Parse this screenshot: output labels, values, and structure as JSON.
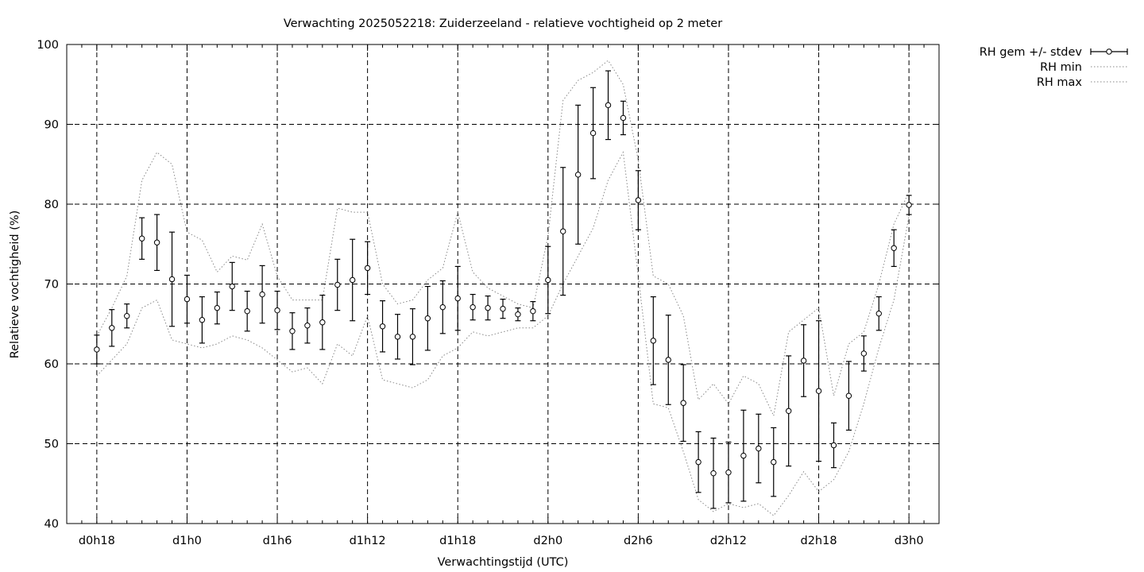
{
  "chart_data": {
    "type": "line",
    "title": "Verwachting 2025052218: Zuiderzeeland - relatieve vochtigheid op 2 meter",
    "xlabel": "Verwachtingstijd (UTC)",
    "ylabel": "Relatieve vochtigheid (%)",
    "ylim": [
      40,
      100
    ],
    "yticks": [
      40,
      50,
      60,
      70,
      80,
      90,
      100
    ],
    "x_unit": "hours since d0h0",
    "xlim": [
      16,
      74
    ],
    "xticks": [
      {
        "x": 18,
        "label": "d0h18"
      },
      {
        "x": 24,
        "label": "d1h0"
      },
      {
        "x": 30,
        "label": "d1h6"
      },
      {
        "x": 36,
        "label": "d1h12"
      },
      {
        "x": 42,
        "label": "d1h18"
      },
      {
        "x": 48,
        "label": "d2h0"
      },
      {
        "x": 54,
        "label": "d2h6"
      },
      {
        "x": 60,
        "label": "d2h12"
      },
      {
        "x": 66,
        "label": "d2h18"
      },
      {
        "x": 72,
        "label": "d3h0"
      }
    ],
    "grid": true,
    "legend_position": "outside-top-right",
    "x": [
      18,
      19,
      20,
      21,
      22,
      23,
      24,
      25,
      26,
      27,
      28,
      29,
      30,
      31,
      32,
      33,
      34,
      35,
      36,
      37,
      38,
      39,
      40,
      41,
      42,
      43,
      44,
      45,
      46,
      47,
      48,
      49,
      50,
      51,
      52,
      53,
      54,
      55,
      56,
      57,
      58,
      59,
      60,
      61,
      62,
      63,
      64,
      65,
      66,
      67,
      68,
      69,
      70,
      71,
      72
    ],
    "series": [
      {
        "name": "RH gem +/- stdev",
        "style": "errorbars",
        "mean": [
          61.8,
          64.5,
          66.0,
          75.7,
          75.2,
          70.6,
          68.1,
          65.5,
          67.0,
          69.7,
          66.6,
          68.7,
          66.7,
          64.1,
          64.8,
          65.2,
          69.9,
          70.5,
          72.0,
          64.7,
          63.4,
          63.4,
          65.7,
          67.1,
          68.2,
          67.1,
          67.0,
          66.9,
          66.2,
          66.6,
          70.5,
          76.6,
          83.7,
          88.9,
          92.4,
          90.8,
          80.5,
          62.9,
          60.5,
          55.1,
          47.7,
          46.3,
          46.4,
          48.5,
          49.4,
          47.7,
          54.1,
          60.4,
          56.6,
          49.8,
          56.0,
          61.3,
          66.3,
          74.5,
          79.9
        ],
        "stdev": [
          1.8,
          2.3,
          1.5,
          2.6,
          3.5,
          5.9,
          3.0,
          2.9,
          2.0,
          3.0,
          2.5,
          3.6,
          2.4,
          2.3,
          2.2,
          3.4,
          3.2,
          5.1,
          3.3,
          3.2,
          2.8,
          3.5,
          4.0,
          3.3,
          4.0,
          1.6,
          1.5,
          1.2,
          0.8,
          1.2,
          4.2,
          8.0,
          8.7,
          5.7,
          4.3,
          2.1,
          3.7,
          5.5,
          5.6,
          4.8,
          3.8,
          4.4,
          3.8,
          5.7,
          4.3,
          4.3,
          6.9,
          4.5,
          8.8,
          2.8,
          4.3,
          2.2,
          2.1,
          2.3,
          1.2
        ]
      },
      {
        "name": "RH min",
        "style": "dotted",
        "values": [
          58.5,
          60.5,
          62.5,
          67.0,
          68.0,
          63.0,
          62.5,
          62.0,
          62.5,
          63.5,
          63.0,
          62.0,
          60.5,
          59.0,
          59.5,
          57.5,
          62.5,
          61.0,
          66.0,
          58.0,
          57.5,
          57.0,
          58.0,
          61.0,
          62.0,
          64.0,
          63.5,
          64.0,
          64.5,
          64.5,
          66.0,
          70.0,
          73.5,
          77.0,
          83.0,
          86.5,
          71.0,
          55.0,
          54.5,
          49.0,
          43.0,
          41.5,
          42.5,
          42.0,
          42.5,
          41.0,
          43.5,
          46.5,
          44.0,
          45.5,
          49.0,
          55.0,
          62.0,
          68.0,
          78.5
        ]
      },
      {
        "name": "RH max",
        "style": "dotted",
        "values": [
          63.5,
          67.0,
          71.0,
          83.0,
          86.5,
          85.0,
          76.5,
          75.5,
          71.5,
          73.5,
          73.0,
          77.5,
          71.0,
          68.0,
          68.0,
          68.0,
          79.5,
          79.0,
          79.0,
          70.0,
          67.5,
          68.0,
          70.5,
          72.0,
          79.0,
          71.5,
          69.5,
          68.5,
          67.5,
          67.0,
          76.0,
          93.0,
          95.5,
          96.5,
          98.0,
          95.0,
          85.5,
          71.0,
          70.0,
          66.0,
          55.5,
          57.5,
          55.0,
          58.5,
          57.5,
          53.5,
          64.0,
          65.5,
          67.0,
          56.0,
          62.5,
          64.0,
          70.0,
          77.5,
          81.5
        ]
      }
    ]
  }
}
